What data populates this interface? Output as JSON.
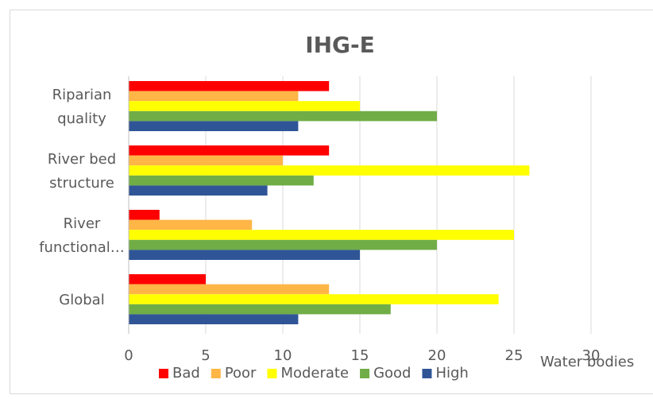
{
  "chart_data": {
    "type": "barh",
    "title": "IHG-E",
    "x_label": "Water bodies",
    "categories": [
      "Riparian quality",
      "River bed structure",
      "River functional…",
      "Global"
    ],
    "series": [
      {
        "name": "Bad",
        "color": "#ff0000",
        "values": [
          13,
          13,
          2,
          5
        ]
      },
      {
        "name": "Poor",
        "color": "#ffb646",
        "values": [
          11,
          10,
          8,
          13
        ]
      },
      {
        "name": "Moderate",
        "color": "#ffff00",
        "values": [
          15,
          26,
          25,
          24
        ]
      },
      {
        "name": "Good",
        "color": "#70ad47",
        "values": [
          20,
          12,
          20,
          17
        ]
      },
      {
        "name": "High",
        "color": "#2f5597",
        "values": [
          11,
          9,
          15,
          11
        ]
      }
    ],
    "xlim": [
      0,
      30
    ],
    "xticks": [
      0,
      5,
      10,
      15,
      20,
      25,
      30
    ],
    "grid": true,
    "legend": "bottom"
  }
}
